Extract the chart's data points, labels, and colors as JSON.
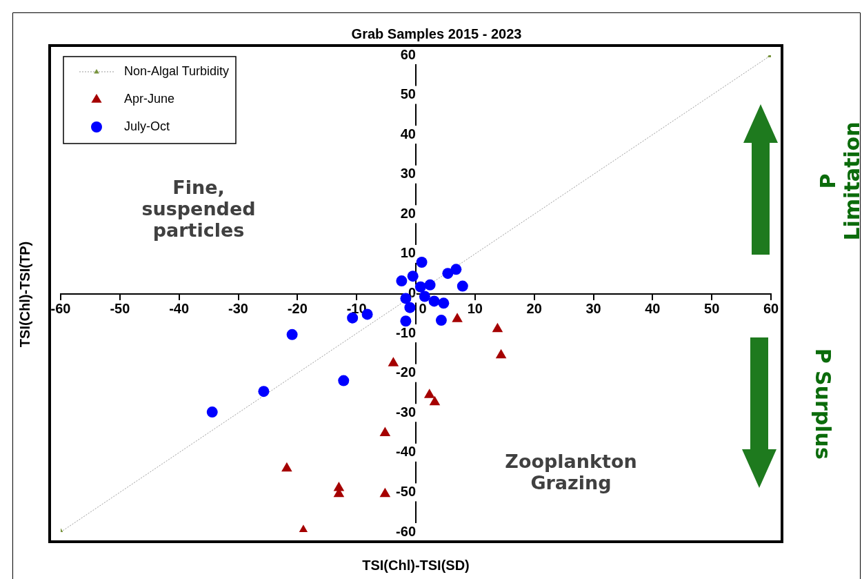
{
  "chart_data": {
    "type": "scatter",
    "title": "Grab Samples 2015 - 2023",
    "xlabel": "TSI(Chl)-TSI(SD)",
    "ylabel": "TSI(Chl)-TSI(TP)",
    "annotations": [
      "Fine, suspended particles",
      "Zooplankton Grazing",
      "P Limitation",
      "P Surplus"
    ],
    "series": [
      {
        "name": "Non-Algal Turbidity",
        "type": "line",
        "color": "#77933c",
        "x": [
          -60,
          60
        ],
        "values": [
          -60,
          60
        ],
        "line_style": "dotted",
        "marker": "triangle"
      },
      {
        "name": "Apr-June",
        "color": "#a50000",
        "marker": "triangle",
        "x": [
          7.0,
          13.8,
          14.4,
          -3.8,
          2.3,
          3.2,
          -5.2,
          -21.8,
          -13.0,
          -13.0,
          -5.2,
          -19.0
        ],
        "values": [
          -6.4,
          -8.9,
          -15.5,
          -17.5,
          -25.5,
          -27.3,
          -35.1,
          -44.0,
          -48.9,
          -50.4,
          -50.4,
          -59.7
        ]
      },
      {
        "name": "July-Oct",
        "color": "#0000ff",
        "marker": "circle",
        "x": [
          1.0,
          -2.4,
          -0.5,
          0.8,
          2.4,
          -1.7,
          1.5,
          -1.0,
          3.1,
          4.7,
          -1.7,
          5.4,
          6.8,
          7.9,
          4.3,
          -10.7,
          -8.2,
          -20.9,
          -12.2,
          -25.7,
          -34.4
        ],
        "values": [
          7.9,
          3.2,
          4.4,
          1.7,
          2.2,
          -1.2,
          -0.7,
          -3.5,
          -1.9,
          -2.4,
          -6.9,
          5.1,
          6.1,
          1.9,
          -6.7,
          -6.1,
          -5.2,
          -10.3,
          -21.9,
          -24.6,
          -29.8
        ]
      }
    ],
    "xlim": [
      -60,
      60
    ],
    "ylim": [
      -60,
      60
    ],
    "xticks": [
      -60,
      -50,
      -40,
      -30,
      -20,
      -10,
      0,
      10,
      20,
      30,
      40,
      50,
      60
    ],
    "yticks": [
      -60,
      -50,
      -40,
      -30,
      -20,
      -10,
      0,
      10,
      20,
      30,
      40,
      50,
      60
    ],
    "grid": false,
    "legend": "top left"
  }
}
